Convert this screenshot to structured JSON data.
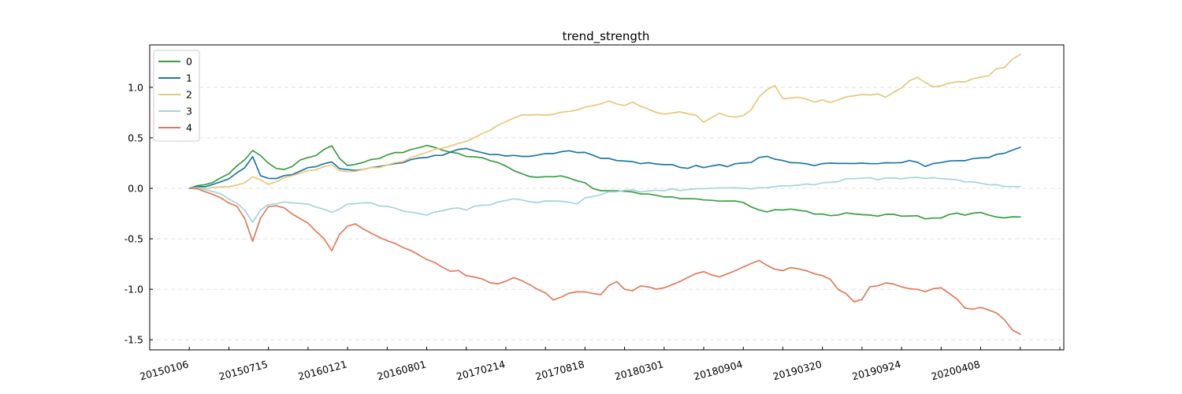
{
  "chart_data": {
    "type": "line",
    "title": "trend_strength",
    "xlabel": "",
    "ylabel": "",
    "x_tick_labels": [
      "20150106",
      "20150715",
      "20160121",
      "20160801",
      "20170214",
      "20170818",
      "20180301",
      "20180904",
      "20190320",
      "20190924",
      "20200408"
    ],
    "x_range": [
      -10,
      221
    ],
    "y_ticks": [
      "1.0",
      "0.5",
      "0.0",
      "-0.5",
      "-1.0",
      "-1.5"
    ],
    "y_tick_values": [
      1.0,
      0.5,
      0.0,
      -0.5,
      -1.0,
      -1.5
    ],
    "ylim": [
      -1.6,
      1.42
    ],
    "grid": "horizontal dashed",
    "legend_position": "top-left",
    "x": [
      0,
      2,
      4,
      6,
      8,
      10,
      12,
      14,
      16,
      18,
      20,
      22,
      24,
      26,
      28,
      30,
      32,
      34,
      36,
      38,
      40,
      42,
      44,
      46,
      48,
      50,
      52,
      54,
      56,
      58,
      60,
      62,
      64,
      66,
      68,
      70,
      72,
      74,
      76,
      78,
      80,
      82,
      84,
      86,
      88,
      90,
      92,
      94,
      96,
      98,
      100,
      102,
      104,
      106,
      108,
      110,
      112,
      114,
      116,
      118,
      120,
      122,
      124,
      126,
      128,
      130,
      132,
      134,
      136,
      138,
      140,
      142,
      144,
      146,
      148,
      150,
      152,
      154,
      156,
      158,
      160,
      162,
      164,
      166,
      168,
      170,
      172,
      174,
      176,
      178,
      180,
      182,
      184,
      186,
      188,
      190,
      192,
      194,
      196,
      198,
      200,
      202,
      204,
      206,
      208,
      210
    ],
    "series": [
      {
        "name": "0",
        "color": "#3a9f42",
        "values": [
          0.0,
          0.02,
          0.04,
          0.06,
          0.1,
          0.15,
          0.22,
          0.28,
          0.38,
          0.32,
          0.25,
          0.2,
          0.18,
          0.22,
          0.28,
          0.3,
          0.33,
          0.38,
          0.42,
          0.3,
          0.22,
          0.24,
          0.26,
          0.28,
          0.3,
          0.33,
          0.35,
          0.36,
          0.38,
          0.4,
          0.43,
          0.4,
          0.38,
          0.36,
          0.34,
          0.32,
          0.31,
          0.3,
          0.28,
          0.25,
          0.22,
          0.18,
          0.14,
          0.12,
          0.11,
          0.11,
          0.12,
          0.12,
          0.1,
          0.08,
          0.05,
          0.0,
          -0.02,
          -0.03,
          -0.02,
          -0.03,
          -0.04,
          -0.05,
          -0.06,
          -0.07,
          -0.08,
          -0.09,
          -0.1,
          -0.1,
          -0.11,
          -0.11,
          -0.12,
          -0.13,
          -0.12,
          -0.13,
          -0.14,
          -0.18,
          -0.22,
          -0.23,
          -0.21,
          -0.22,
          -0.2,
          -0.22,
          -0.23,
          -0.25,
          -0.26,
          -0.27,
          -0.26,
          -0.25,
          -0.25,
          -0.26,
          -0.27,
          -0.27,
          -0.26,
          -0.26,
          -0.27,
          -0.28,
          -0.27,
          -0.3,
          -0.3,
          -0.29,
          -0.26,
          -0.25,
          -0.26,
          -0.25,
          -0.24,
          -0.26,
          -0.29,
          -0.29,
          -0.28,
          -0.29
        ]
      },
      {
        "name": "1",
        "color": "#1f77a8",
        "values": [
          0.0,
          0.01,
          0.02,
          0.04,
          0.06,
          0.1,
          0.15,
          0.2,
          0.32,
          0.12,
          0.1,
          0.1,
          0.12,
          0.14,
          0.17,
          0.2,
          0.22,
          0.24,
          0.26,
          0.2,
          0.18,
          0.18,
          0.19,
          0.2,
          0.22,
          0.23,
          0.24,
          0.26,
          0.28,
          0.3,
          0.31,
          0.32,
          0.33,
          0.36,
          0.38,
          0.4,
          0.37,
          0.35,
          0.34,
          0.33,
          0.32,
          0.33,
          0.31,
          0.32,
          0.33,
          0.34,
          0.35,
          0.36,
          0.37,
          0.36,
          0.35,
          0.33,
          0.3,
          0.29,
          0.28,
          0.27,
          0.26,
          0.25,
          0.25,
          0.24,
          0.24,
          0.23,
          0.21,
          0.2,
          0.22,
          0.21,
          0.22,
          0.23,
          0.22,
          0.24,
          0.25,
          0.26,
          0.3,
          0.32,
          0.29,
          0.27,
          0.26,
          0.25,
          0.24,
          0.23,
          0.24,
          0.25,
          0.25,
          0.24,
          0.25,
          0.25,
          0.24,
          0.25,
          0.25,
          0.25,
          0.26,
          0.27,
          0.26,
          0.22,
          0.24,
          0.26,
          0.27,
          0.27,
          0.28,
          0.29,
          0.3,
          0.31,
          0.33,
          0.35,
          0.38,
          0.4
        ]
      },
      {
        "name": "2",
        "color": "#e8c87a",
        "values": [
          0.0,
          0.0,
          0.0,
          0.01,
          0.01,
          0.02,
          0.03,
          0.05,
          0.12,
          0.08,
          0.04,
          0.07,
          0.1,
          0.13,
          0.15,
          0.17,
          0.19,
          0.21,
          0.23,
          0.18,
          0.16,
          0.17,
          0.19,
          0.2,
          0.21,
          0.23,
          0.25,
          0.27,
          0.3,
          0.33,
          0.36,
          0.38,
          0.4,
          0.42,
          0.44,
          0.47,
          0.5,
          0.54,
          0.58,
          0.62,
          0.66,
          0.7,
          0.72,
          0.73,
          0.73,
          0.72,
          0.74,
          0.75,
          0.76,
          0.78,
          0.8,
          0.82,
          0.84,
          0.86,
          0.84,
          0.82,
          0.85,
          0.82,
          0.78,
          0.75,
          0.74,
          0.74,
          0.76,
          0.74,
          0.72,
          0.66,
          0.7,
          0.74,
          0.72,
          0.7,
          0.72,
          0.78,
          0.9,
          0.98,
          1.02,
          0.88,
          0.9,
          0.9,
          0.88,
          0.86,
          0.87,
          0.85,
          0.88,
          0.9,
          0.92,
          0.93,
          0.92,
          0.94,
          0.9,
          0.95,
          1.0,
          1.06,
          1.1,
          1.05,
          1.0,
          1.02,
          1.04,
          1.05,
          1.06,
          1.08,
          1.1,
          1.12,
          1.18,
          1.2,
          1.28,
          1.32
        ]
      },
      {
        "name": "3",
        "color": "#a6d3e0",
        "values": [
          0.0,
          0.0,
          -0.01,
          -0.03,
          -0.06,
          -0.1,
          -0.15,
          -0.22,
          -0.33,
          -0.22,
          -0.16,
          -0.15,
          -0.14,
          -0.14,
          -0.15,
          -0.16,
          -0.18,
          -0.21,
          -0.24,
          -0.2,
          -0.16,
          -0.15,
          -0.14,
          -0.15,
          -0.17,
          -0.18,
          -0.2,
          -0.22,
          -0.24,
          -0.25,
          -0.26,
          -0.24,
          -0.22,
          -0.2,
          -0.2,
          -0.21,
          -0.18,
          -0.17,
          -0.16,
          -0.14,
          -0.12,
          -0.1,
          -0.12,
          -0.13,
          -0.14,
          -0.13,
          -0.12,
          -0.13,
          -0.14,
          -0.15,
          -0.1,
          -0.08,
          -0.06,
          -0.04,
          -0.03,
          -0.02,
          -0.02,
          -0.03,
          -0.03,
          -0.02,
          -0.02,
          -0.01,
          -0.02,
          -0.01,
          -0.01,
          0.0,
          0.0,
          0.0,
          0.01,
          0.0,
          0.0,
          0.0,
          0.0,
          0.01,
          0.02,
          0.02,
          0.03,
          0.03,
          0.04,
          0.04,
          0.05,
          0.06,
          0.07,
          0.09,
          0.1,
          0.1,
          0.1,
          0.09,
          0.1,
          0.1,
          0.1,
          0.1,
          0.11,
          0.1,
          0.1,
          0.1,
          0.09,
          0.08,
          0.07,
          0.06,
          0.05,
          0.04,
          0.03,
          0.02,
          0.02,
          0.01
        ]
      },
      {
        "name": "4",
        "color": "#e07b5a",
        "values": [
          0.0,
          -0.01,
          -0.03,
          -0.06,
          -0.1,
          -0.14,
          -0.18,
          -0.3,
          -0.52,
          -0.3,
          -0.18,
          -0.17,
          -0.2,
          -0.25,
          -0.3,
          -0.35,
          -0.42,
          -0.5,
          -0.62,
          -0.45,
          -0.38,
          -0.35,
          -0.4,
          -0.45,
          -0.48,
          -0.52,
          -0.55,
          -0.58,
          -0.62,
          -0.66,
          -0.7,
          -0.74,
          -0.78,
          -0.82,
          -0.82,
          -0.86,
          -0.88,
          -0.9,
          -0.93,
          -0.95,
          -0.92,
          -0.88,
          -0.92,
          -0.95,
          -1.0,
          -1.04,
          -1.1,
          -1.08,
          -1.04,
          -1.02,
          -1.03,
          -1.04,
          -1.05,
          -0.97,
          -0.92,
          -1.0,
          -1.02,
          -0.96,
          -0.98,
          -1.0,
          -0.98,
          -0.96,
          -0.92,
          -0.88,
          -0.85,
          -0.82,
          -0.86,
          -0.88,
          -0.84,
          -0.82,
          -0.78,
          -0.74,
          -0.72,
          -0.76,
          -0.8,
          -0.82,
          -0.78,
          -0.8,
          -0.82,
          -0.84,
          -0.87,
          -0.9,
          -1.0,
          -1.05,
          -1.12,
          -1.1,
          -0.98,
          -0.96,
          -0.94,
          -0.95,
          -0.97,
          -1.0,
          -1.0,
          -1.02,
          -1.0,
          -0.98,
          -1.04,
          -1.1,
          -1.18,
          -1.2,
          -1.18,
          -1.2,
          -1.24,
          -1.3,
          -1.4,
          -1.45
        ]
      }
    ]
  }
}
